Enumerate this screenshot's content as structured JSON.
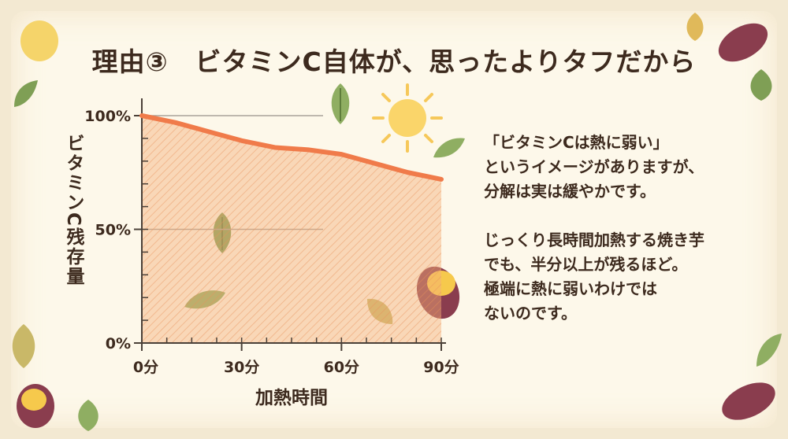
{
  "title": "理由③　ビタミンC自体が、思ったよりタフだから",
  "chart_data": {
    "type": "line",
    "title": "",
    "xlabel": "加熱時間",
    "ylabel": "ビタミンC残存量",
    "x": [
      0,
      10,
      20,
      30,
      40,
      50,
      60,
      70,
      80,
      90
    ],
    "x_tick_values": [
      0,
      30,
      60,
      90
    ],
    "x_tick_labels": [
      "0分",
      "30分",
      "60分",
      "90分"
    ],
    "y_tick_values": [
      0,
      50,
      100
    ],
    "y_tick_labels": [
      "0%",
      "50%",
      "100%"
    ],
    "series": [
      {
        "values": [
          100,
          97,
          93,
          89,
          86,
          85,
          83,
          79,
          75,
          72
        ]
      }
    ],
    "xlim": [
      0,
      90
    ],
    "ylim": [
      0,
      100
    ],
    "grid": true,
    "colors": {
      "line": "#f07b4a",
      "fill": "#f5b07a"
    }
  },
  "note": {
    "lines1": [
      "「ビタミンCは熱に弱い」",
      "というイメージがありますが、",
      "分解は実は緩やかです。"
    ],
    "lines2": [
      "じっくり長時間加熱する焼き芋",
      "でも、半分以上が残るほど。",
      "極端に熱に弱いわけでは",
      "ないのです。"
    ]
  },
  "decorations": [
    "sun-icon",
    "leaf-icon",
    "sweet-potato-icon"
  ]
}
